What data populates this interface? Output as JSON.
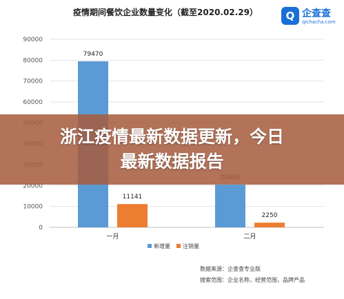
{
  "chart_data": {
    "type": "bar",
    "title": "疫情期间餐饮企业数量变化（截至2020.02.29）",
    "categories": [
      "一月",
      "二月"
    ],
    "series": [
      {
        "name": "新增量",
        "color": "#5b9bd5",
        "values": [
          79470,
          20405
        ]
      },
      {
        "name": "注销量",
        "color": "#ed7d31",
        "values": [
          11141,
          2250
        ]
      }
    ],
    "ylim": [
      0,
      90000
    ],
    "yticks": [
      0,
      10000,
      20000,
      30000,
      40000,
      50000,
      60000,
      70000,
      80000,
      90000
    ],
    "grid": true,
    "legend_position": "bottom",
    "xlabel": "",
    "ylabel": ""
  },
  "logo": {
    "mark": "Q",
    "name": "企查查",
    "url": "qichacha.com"
  },
  "source": {
    "line1": "数据来源：企查查专业版",
    "line2": "搜索范围：企业名称，经营范围，品牌产品"
  },
  "banner": {
    "line1": "浙江疫情最新数据更新，今日",
    "line2": "最新数据报告"
  }
}
